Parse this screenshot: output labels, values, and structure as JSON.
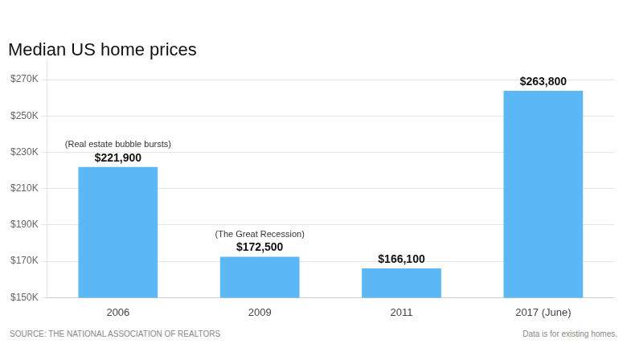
{
  "chart_data": {
    "type": "bar",
    "title": "Median US home prices",
    "categories": [
      "2006",
      "2009",
      "2011",
      "2017 (June)"
    ],
    "values": [
      221900,
      172500,
      166100,
      263800
    ],
    "value_labels": [
      "$221,900",
      "$172,500",
      "$166,100",
      "$263,800"
    ],
    "data_labels": true,
    "color": "#5BB8F5",
    "ylim": [
      150000,
      280000
    ],
    "yticks": [
      {
        "value": 150000,
        "label": "$150K"
      },
      {
        "value": 170000,
        "label": "$170K"
      },
      {
        "value": 190000,
        "label": "$190K"
      },
      {
        "value": 210000,
        "label": "$210K"
      },
      {
        "value": 230000,
        "label": "$230K"
      },
      {
        "value": 250000,
        "label": "$250K"
      },
      {
        "value": 270000,
        "label": "$270K"
      }
    ],
    "grid": true,
    "annotations": [
      {
        "category": "2006",
        "text": "(Real estate bubble bursts)"
      },
      {
        "category": "2009",
        "text": "(The Great Recession)"
      }
    ],
    "source": "SOURCE: THE NATIONAL ASSOCIATION OF REALTORS",
    "note": "Data is for existing homes."
  }
}
